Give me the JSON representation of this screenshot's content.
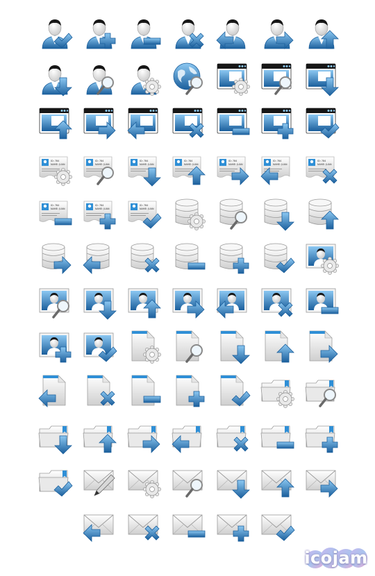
{
  "palette": {
    "blue": "#2f8fd6",
    "blueDark": "#1b5f9c",
    "blueLight": "#8cc8f2",
    "gray": "#cfcfcf",
    "grayDark": "#8a8a8a",
    "grayLight": "#f2f2f2",
    "black": "#161616"
  },
  "rows": [
    [
      {
        "base": "user",
        "badge": "check"
      },
      {
        "base": "user",
        "badge": "plus"
      },
      {
        "base": "user",
        "badge": "minus"
      },
      {
        "base": "user",
        "badge": "x"
      },
      {
        "base": "user",
        "badge": "left"
      },
      {
        "base": "user",
        "badge": "right"
      },
      {
        "base": "user",
        "badge": "up"
      }
    ],
    [
      {
        "base": "user",
        "badge": "down"
      },
      {
        "base": "user",
        "badge": "search"
      },
      {
        "base": "user",
        "badge": "gear"
      },
      {
        "base": "globe",
        "badge": "search"
      },
      {
        "base": "window",
        "badge": "gear"
      },
      {
        "base": "window",
        "badge": "search"
      },
      {
        "base": "window",
        "badge": "down"
      }
    ],
    [
      {
        "base": "window",
        "badge": "up"
      },
      {
        "base": "window",
        "badge": "right"
      },
      {
        "base": "window",
        "badge": "left"
      },
      {
        "base": "window",
        "badge": "x"
      },
      {
        "base": "window",
        "badge": "minus"
      },
      {
        "base": "window",
        "badge": "plus"
      },
      {
        "base": "window",
        "badge": "check"
      }
    ],
    [
      {
        "base": "card",
        "badge": "gear"
      },
      {
        "base": "card",
        "badge": "search"
      },
      {
        "base": "card",
        "badge": "down"
      },
      {
        "base": "card",
        "badge": "up"
      },
      {
        "base": "card",
        "badge": "right"
      },
      {
        "base": "card",
        "badge": "left"
      },
      {
        "base": "card",
        "badge": "x"
      }
    ],
    [
      {
        "base": "card",
        "badge": "minus"
      },
      {
        "base": "card",
        "badge": "plus"
      },
      {
        "base": "card",
        "badge": "check"
      },
      {
        "base": "database",
        "badge": "gear"
      },
      {
        "base": "database",
        "badge": "search"
      },
      {
        "base": "database",
        "badge": "down"
      },
      {
        "base": "database",
        "badge": "up"
      }
    ],
    [
      {
        "base": "database",
        "badge": "right"
      },
      {
        "base": "database",
        "badge": "left"
      },
      {
        "base": "database",
        "badge": "x"
      },
      {
        "base": "database",
        "badge": "minus"
      },
      {
        "base": "database",
        "badge": "plus"
      },
      {
        "base": "database",
        "badge": "check"
      },
      {
        "base": "photo",
        "badge": "gear"
      }
    ],
    [
      {
        "base": "photo",
        "badge": "search"
      },
      {
        "base": "photo",
        "badge": "down"
      },
      {
        "base": "photo",
        "badge": "up"
      },
      {
        "base": "photo",
        "badge": "right"
      },
      {
        "base": "photo",
        "badge": "left"
      },
      {
        "base": "photo",
        "badge": "x"
      },
      {
        "base": "photo",
        "badge": "minus"
      }
    ],
    [
      {
        "base": "photo",
        "badge": "plus"
      },
      {
        "base": "photo",
        "badge": "check"
      },
      {
        "base": "document",
        "badge": "gear"
      },
      {
        "base": "document",
        "badge": "search"
      },
      {
        "base": "document",
        "badge": "down"
      },
      {
        "base": "document",
        "badge": "up"
      },
      {
        "base": "document",
        "badge": "right"
      }
    ],
    [
      {
        "base": "document",
        "badge": "left"
      },
      {
        "base": "document",
        "badge": "x"
      },
      {
        "base": "document",
        "badge": "minus"
      },
      {
        "base": "document",
        "badge": "plus"
      },
      {
        "base": "document",
        "badge": "check"
      },
      {
        "base": "folder",
        "badge": "gear"
      },
      {
        "base": "folder",
        "badge": "search"
      }
    ],
    [
      {
        "base": "folder",
        "badge": "down"
      },
      {
        "base": "folder",
        "badge": "up"
      },
      {
        "base": "folder",
        "badge": "right"
      },
      {
        "base": "folder",
        "badge": "left"
      },
      {
        "base": "folder",
        "badge": "x"
      },
      {
        "base": "folder",
        "badge": "minus"
      },
      {
        "base": "folder",
        "badge": "plus"
      }
    ],
    [
      {
        "base": "folder",
        "badge": "check"
      },
      {
        "base": "mail",
        "badge": "pen"
      },
      {
        "base": "mail",
        "badge": "gear"
      },
      {
        "base": "mail",
        "badge": "search"
      },
      {
        "base": "mail",
        "badge": "down"
      },
      {
        "base": "mail",
        "badge": "up"
      },
      {
        "base": "mail",
        "badge": "right"
      }
    ],
    [
      {
        "base": "mail",
        "badge": "left"
      },
      {
        "base": "mail",
        "badge": "x"
      },
      {
        "base": "mail",
        "badge": "minus"
      },
      {
        "base": "mail",
        "badge": "plus"
      },
      {
        "base": "mail",
        "badge": "check"
      }
    ]
  ],
  "card_text": {
    "line1": "ID: 784",
    "line2": "NAME: JUAN"
  },
  "logo": {
    "text": "icojam",
    "icon": "icojam-logo"
  }
}
